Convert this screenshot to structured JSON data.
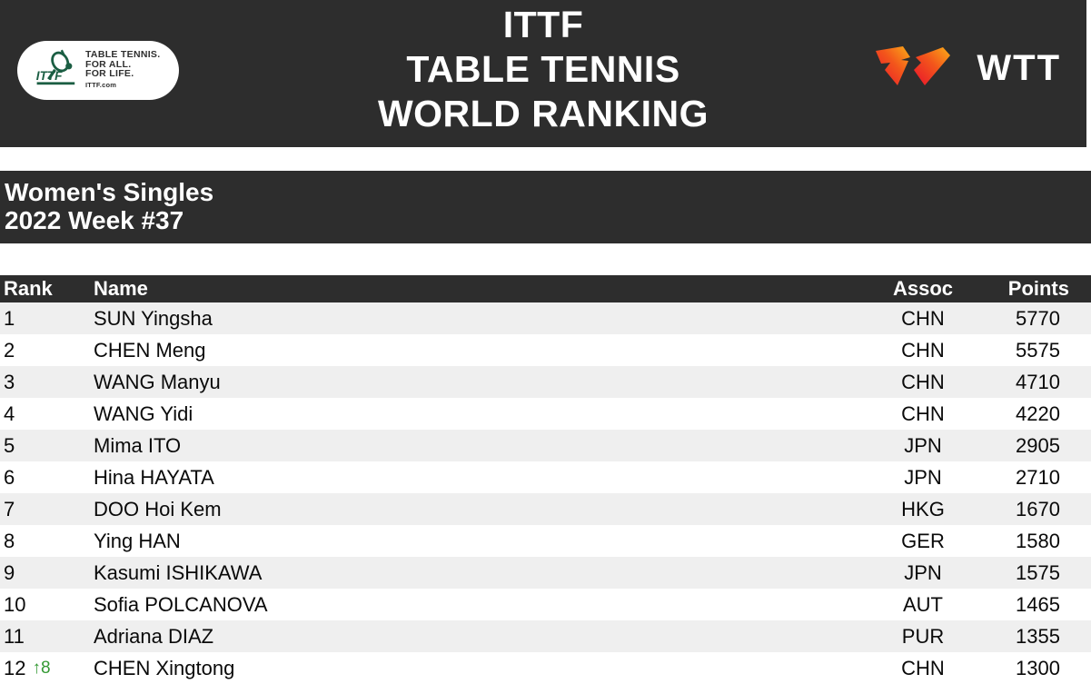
{
  "header": {
    "ittf_logo": {
      "mark_text": "ITTF",
      "lines": [
        "TABLE TENNIS.",
        "FOR ALL.",
        "FOR LIFE."
      ],
      "url_text": "ITTF.com",
      "green": "#1b5e43"
    },
    "title_lines": [
      "ITTF",
      "TABLE TENNIS",
      "WORLD RANKING"
    ],
    "wtt_logo": {
      "text": "WTT",
      "gradient_from": "#e8112d",
      "gradient_to": "#fbae17"
    }
  },
  "banner": {
    "line1": "Women's Singles",
    "line2": "2022 Week #37"
  },
  "table": {
    "columns": [
      "Rank",
      "Name",
      "Assoc",
      "Points"
    ],
    "rows": [
      {
        "rank": "1",
        "delta": "",
        "name": "SUN Yingsha",
        "assoc": "CHN",
        "points": "5770"
      },
      {
        "rank": "2",
        "delta": "",
        "name": "CHEN Meng",
        "assoc": "CHN",
        "points": "5575"
      },
      {
        "rank": "3",
        "delta": "",
        "name": "WANG Manyu",
        "assoc": "CHN",
        "points": "4710"
      },
      {
        "rank": "4",
        "delta": "",
        "name": "WANG Yidi",
        "assoc": "CHN",
        "points": "4220"
      },
      {
        "rank": "5",
        "delta": "",
        "name": "Mima ITO",
        "assoc": "JPN",
        "points": "2905"
      },
      {
        "rank": "6",
        "delta": "",
        "name": "Hina HAYATA",
        "assoc": "JPN",
        "points": "2710"
      },
      {
        "rank": "7",
        "delta": "",
        "name": "DOO Hoi Kem",
        "assoc": "HKG",
        "points": "1670"
      },
      {
        "rank": "8",
        "delta": "",
        "name": "Ying HAN",
        "assoc": "GER",
        "points": "1580"
      },
      {
        "rank": "9",
        "delta": "",
        "name": "Kasumi ISHIKAWA",
        "assoc": "JPN",
        "points": "1575"
      },
      {
        "rank": "10",
        "delta": "",
        "name": "Sofia POLCANOVA",
        "assoc": "AUT",
        "points": "1465"
      },
      {
        "rank": "11",
        "delta": "",
        "name": "Adriana DIAZ",
        "assoc": "PUR",
        "points": "1355"
      },
      {
        "rank": "12",
        "delta": "↑8",
        "name": "CHEN Xingtong",
        "assoc": "CHN",
        "points": "1300"
      }
    ]
  },
  "colors": {
    "dark": "#2d2d2d",
    "row-alt": "#efefef",
    "delta-green": "#339933",
    "ittf-green": "#1b5e43"
  }
}
